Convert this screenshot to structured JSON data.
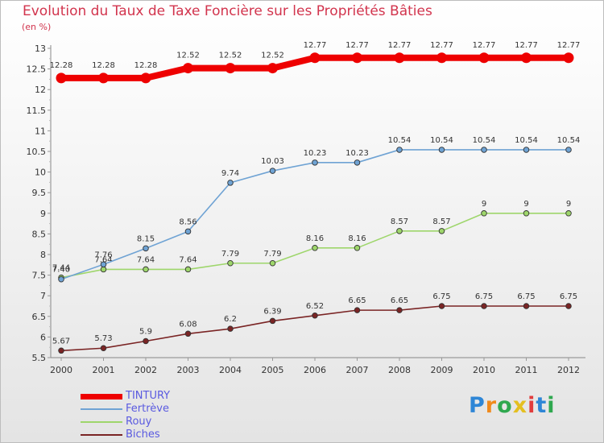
{
  "title": "Evolution du Taux de Taxe Foncière sur les Propriétés Bâties",
  "unit_label": "(en %)",
  "logo_text": "Proxiti",
  "chart_data": {
    "type": "line",
    "title": "Evolution du Taux de Taxe Foncière sur les Propriétés Bâties",
    "ylabel": "(en %)",
    "xlabel": "",
    "x": [
      "2000",
      "2001",
      "2002",
      "2003",
      "2004",
      "2005",
      "2006",
      "2007",
      "2008",
      "2009",
      "2010",
      "2011",
      "2012"
    ],
    "ylim": [
      5.5,
      13
    ],
    "yticks": [
      "5.5",
      "6",
      "6.5",
      "7",
      "7.5",
      "8",
      "8.5",
      "9",
      "9.5",
      "10",
      "10.5",
      "11",
      "11.5",
      "12",
      "12.5",
      "13"
    ],
    "grid": false,
    "legend_position": "bottom-left",
    "series": [
      {
        "name": "TINTURY",
        "color": "#ee0000",
        "emphasis": true,
        "values": [
          12.28,
          12.28,
          12.28,
          12.52,
          12.52,
          12.52,
          12.77,
          12.77,
          12.77,
          12.77,
          12.77,
          12.77,
          12.77
        ],
        "labels": [
          "12.28",
          "12.28",
          "12.28",
          "12.52",
          "12.52",
          "12.52",
          "12.77",
          "12.77",
          "12.77",
          "12.77",
          "12.77",
          "12.77",
          "12.77"
        ]
      },
      {
        "name": "Fertrève",
        "color": "#6fa3d4",
        "values": [
          7.4,
          7.76,
          8.15,
          8.56,
          9.74,
          10.03,
          10.23,
          10.23,
          10.54,
          10.54,
          10.54,
          10.54,
          10.54
        ],
        "labels": [
          "7.40",
          "7.76",
          "8.15",
          "8.56",
          "9.74",
          "10.03",
          "10.23",
          "10.23",
          "10.54",
          "10.54",
          "10.54",
          "10.54",
          "10.54"
        ]
      },
      {
        "name": "Rouy",
        "color": "#9ed66b",
        "values": [
          7.44,
          7.64,
          7.64,
          7.64,
          7.79,
          7.79,
          8.16,
          8.16,
          8.57,
          8.57,
          9,
          9,
          9
        ],
        "labels": [
          "7.44",
          "7.64",
          "7.64",
          "7.64",
          "7.79",
          "7.79",
          "8.16",
          "8.16",
          "8.57",
          "8.57",
          "9",
          "9",
          "9"
        ]
      },
      {
        "name": "Biches",
        "color": "#7a2424",
        "values": [
          5.67,
          5.73,
          5.9,
          6.08,
          6.2,
          6.39,
          6.52,
          6.65,
          6.65,
          6.75,
          6.75,
          6.75,
          6.75
        ],
        "labels": [
          "5.67",
          "5.73",
          "5.9",
          "6.08",
          "6.2",
          "6.39",
          "6.52",
          "6.65",
          "6.65",
          "6.75",
          "6.75",
          "6.75",
          "6.75"
        ]
      }
    ]
  }
}
